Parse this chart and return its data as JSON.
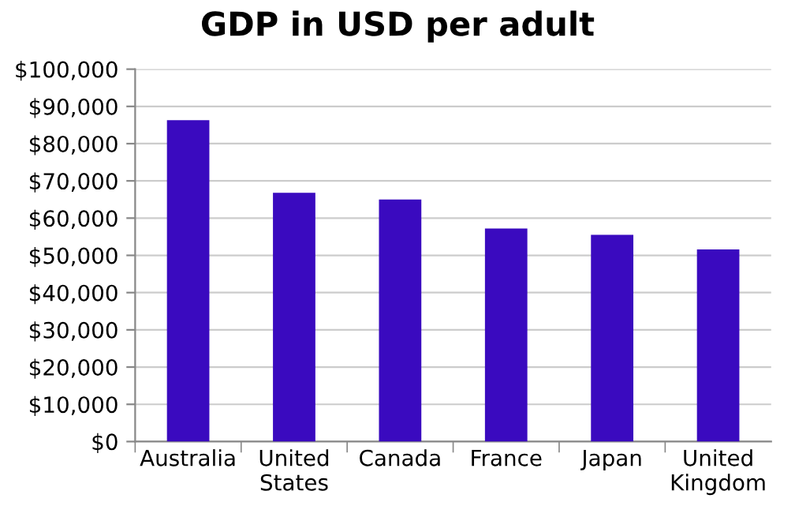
{
  "chart_data": {
    "type": "bar",
    "title": "GDP in USD per adult",
    "categories": [
      "Australia",
      "United\nStates",
      "Canada",
      "France",
      "Japan",
      "United\nKingdom"
    ],
    "values": [
      86300,
      66800,
      65000,
      57200,
      55500,
      51600
    ],
    "color": "#3a0abf",
    "ylim": [
      0,
      100000
    ],
    "yticks": [
      {
        "value": 0,
        "label": "$0"
      },
      {
        "value": 10000,
        "label": "$10,000"
      },
      {
        "value": 20000,
        "label": "$20,000"
      },
      {
        "value": 30000,
        "label": "$30,000"
      },
      {
        "value": 40000,
        "label": "$40,000"
      },
      {
        "value": 50000,
        "label": "$50,000"
      },
      {
        "value": 60000,
        "label": "$60,000"
      },
      {
        "value": 70000,
        "label": "$70,000"
      },
      {
        "value": 80000,
        "label": "$80,000"
      },
      {
        "value": 90000,
        "label": "$90,000"
      },
      {
        "value": 100000,
        "label": "$100,000"
      }
    ],
    "grid": "y",
    "legend": false
  }
}
